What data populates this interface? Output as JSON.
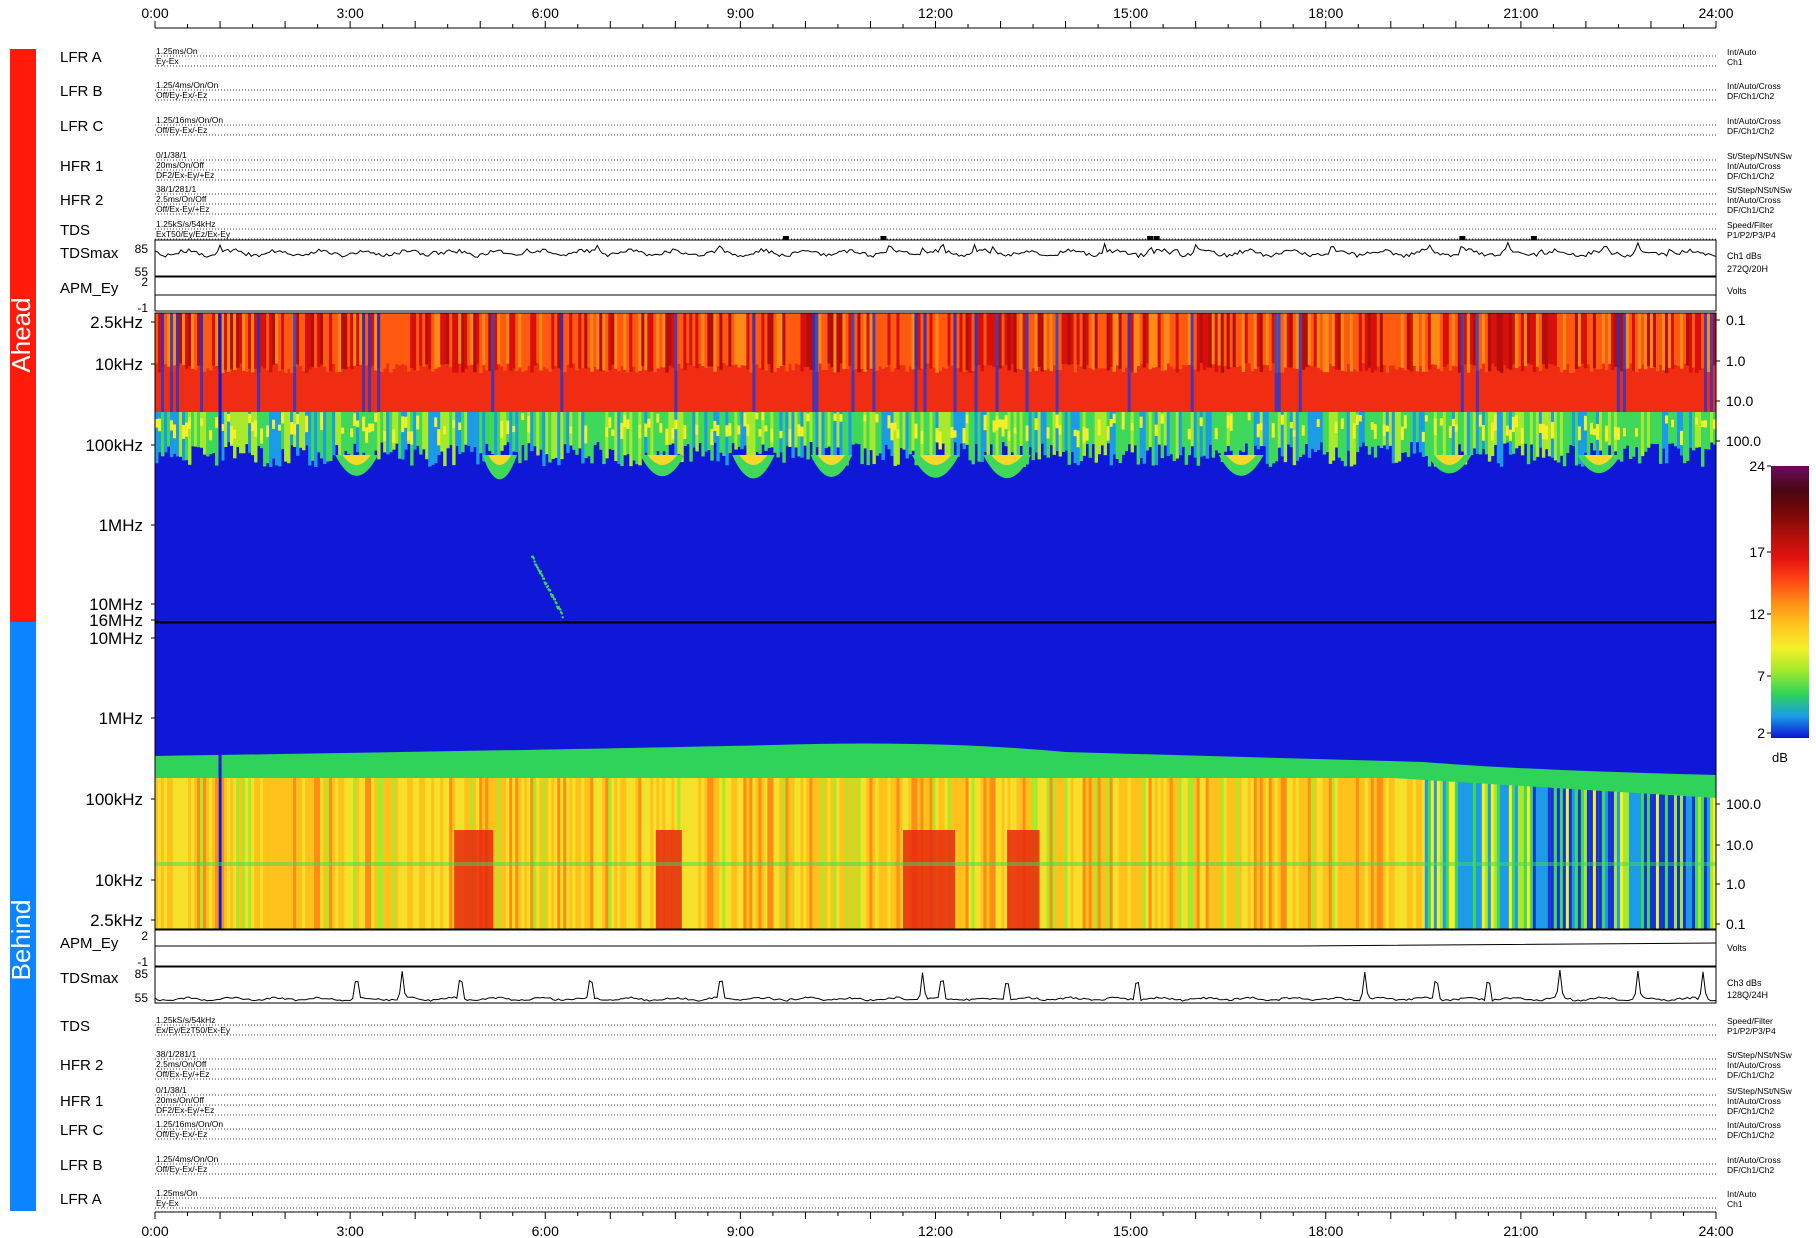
{
  "time_axis": {
    "ticks": [
      "0:00",
      "3:00",
      "6:00",
      "9:00",
      "12:00",
      "15:00",
      "18:00",
      "21:00",
      "24:00"
    ]
  },
  "sections": {
    "ahead_label": "Ahead",
    "behind_label": "Behind",
    "ahead_color": "#ff1a0a",
    "behind_color": "#0a84ff"
  },
  "ahead_rows": [
    {
      "label": "LFR A",
      "left": [
        "1.25ms/On",
        "Ey-Ex"
      ],
      "right": [
        "Int/Auto",
        "Ch1"
      ]
    },
    {
      "label": "LFR B",
      "left": [
        "1.25/4ms/On/On",
        "Off/Ey-Ex/-Ez"
      ],
      "right": [
        "Int/Auto/Cross",
        "DF/Ch1/Ch2"
      ]
    },
    {
      "label": "LFR C",
      "left": [
        "1.25/16ms/On/On",
        "Off/Ey-Ex/-Ez"
      ],
      "right": [
        "Int/Auto/Cross",
        "DF/Ch1/Ch2"
      ]
    },
    {
      "label": "HFR 1",
      "left": [
        "0/1/38/1",
        "20ms/On/Off",
        "DF2/Ex-Ey/+Ez"
      ],
      "right": [
        "St/Step/NSt/NSw",
        "Int/Auto/Cross",
        "DF/Ch1/Ch2"
      ]
    },
    {
      "label": "HFR 2",
      "left": [
        "38/1/281/1",
        "2.5ms/On/Off",
        "Off/Ex-Ey/+Ez"
      ],
      "right": [
        "St/Step/NSt/NSw",
        "Int/Auto/Cross",
        "DF/Ch1/Ch2"
      ]
    },
    {
      "label": "TDS",
      "left": [
        "1.25kS/s/54kHz",
        "ExT50/Ey/Ez/Ex-Ey"
      ],
      "right": [
        "Speed/Filter",
        "P1/P2/P3/P4"
      ]
    }
  ],
  "ahead_tdsmax": {
    "label": "TDSmax",
    "ytop": "85",
    "ybot": "55",
    "right": [
      "Ch1 dBs",
      "272Q/20H"
    ]
  },
  "ahead_apm": {
    "label": "APM_Ey",
    "ytop": "2",
    "ybot": "-1",
    "right": [
      "Volts"
    ]
  },
  "behind_apm": {
    "label": "APM_Ey",
    "ytop": "2",
    "ybot": "-1",
    "right": [
      "Volts"
    ]
  },
  "behind_tdsmax": {
    "label": "TDSmax",
    "ytop": "85",
    "ybot": "55",
    "right": [
      "Ch3 dBs",
      "128Q/24H"
    ]
  },
  "behind_rows": [
    {
      "label": "TDS",
      "left": [
        "1.25kS/s/54kHz",
        "Ex/Ey/EzT50/Ex-Ey"
      ],
      "right": [
        "Speed/Filter",
        "P1/P2/P3/P4"
      ]
    },
    {
      "label": "HFR 2",
      "left": [
        "38/1/281/1",
        "2.5ms/On/Off",
        "Off/Ex-Ey/+Ez"
      ],
      "right": [
        "St/Step/NSt/NSw",
        "Int/Auto/Cross",
        "DF/Ch1/Ch2"
      ]
    },
    {
      "label": "HFR 1",
      "left": [
        "0/1/38/1",
        "20ms/On/Off",
        "DF2/Ex-Ey/+Ez"
      ],
      "right": [
        "St/Step/NSt/NSw",
        "Int/Auto/Cross",
        "DF/Ch1/Ch2"
      ]
    },
    {
      "label": "LFR C",
      "left": [
        "1.25/16ms/On/On",
        "Off/Ey-Ex/-Ez"
      ],
      "right": [
        "Int/Auto/Cross",
        "DF/Ch1/Ch2"
      ]
    },
    {
      "label": "LFR B",
      "left": [
        "1.25/4ms/On/On",
        "Off/Ey-Ex/-Ez"
      ],
      "right": [
        "Int/Auto/Cross",
        "DF/Ch1/Ch2"
      ]
    },
    {
      "label": "LFR A",
      "left": [
        "1.25ms/On",
        "Ey-Ex"
      ],
      "right": [
        "Int/Auto",
        "Ch1"
      ]
    }
  ],
  "chart_data": {
    "type": "heatmap",
    "x_range_hours": [
      0,
      24
    ],
    "x_ticks": [
      "0:00",
      "3:00",
      "6:00",
      "9:00",
      "12:00",
      "15:00",
      "18:00",
      "21:00",
      "24:00"
    ],
    "ahead_panel": {
      "y_axis_labels": [
        "2.5kHz",
        "10kHz",
        "100kHz",
        "1MHz",
        "10MHz",
        "16MHz"
      ],
      "right_axis_labels": [
        "0.1",
        "1.0",
        "10.0",
        "100.0"
      ],
      "ridge_hours": [
        3.1,
        5.3,
        7.8,
        9.2,
        10.4,
        12.0,
        13.1,
        16.7,
        19.9,
        22.2
      ],
      "burst_hours": [
        5.8,
        6.1,
        6.4
      ]
    },
    "behind_panel": {
      "y_axis_labels": [
        "10MHz",
        "1MHz",
        "100kHz",
        "10kHz",
        "2.5kHz"
      ],
      "right_axis_labels": [
        "100.0",
        "10.0",
        "1.0",
        "0.1"
      ],
      "red_band_hours": [
        [
          4.6,
          5.2
        ],
        [
          7.7,
          8.1
        ],
        [
          11.5,
          12.3
        ],
        [
          13.1,
          13.6
        ]
      ],
      "noisy_from_hour": 19.0,
      "dropout_hour": 1.0
    },
    "colorbar": {
      "unit": "dB",
      "ticks": [
        "24",
        "17",
        "12",
        "7",
        "2"
      ],
      "colors": [
        "#0a14d6",
        "#1c9be6",
        "#2fd35a",
        "#a4ea2b",
        "#f5f02a",
        "#ffc21d",
        "#ff8c16",
        "#ff4612",
        "#e6120e",
        "#b5100a",
        "#7d0808",
        "#4a0612",
        "#6b0a5e"
      ]
    },
    "tdsmax": {
      "ahead_spike_hours": [
        1.0,
        4.3,
        5.7,
        6.8,
        8.7,
        11.3,
        11.8,
        12.1,
        12.6,
        12.9,
        14.6,
        15.3,
        15.7,
        16.0,
        18.1,
        19.6,
        20.1,
        20.8,
        21.3,
        22.3,
        22.8,
        23.3
      ],
      "behind_spike_hours": [
        3.1,
        3.8,
        4.7,
        6.7,
        8.7,
        11.8,
        12.1,
        13.1,
        15.1,
        18.6,
        19.7,
        20.5,
        21.6,
        22.8,
        23.8
      ]
    }
  }
}
